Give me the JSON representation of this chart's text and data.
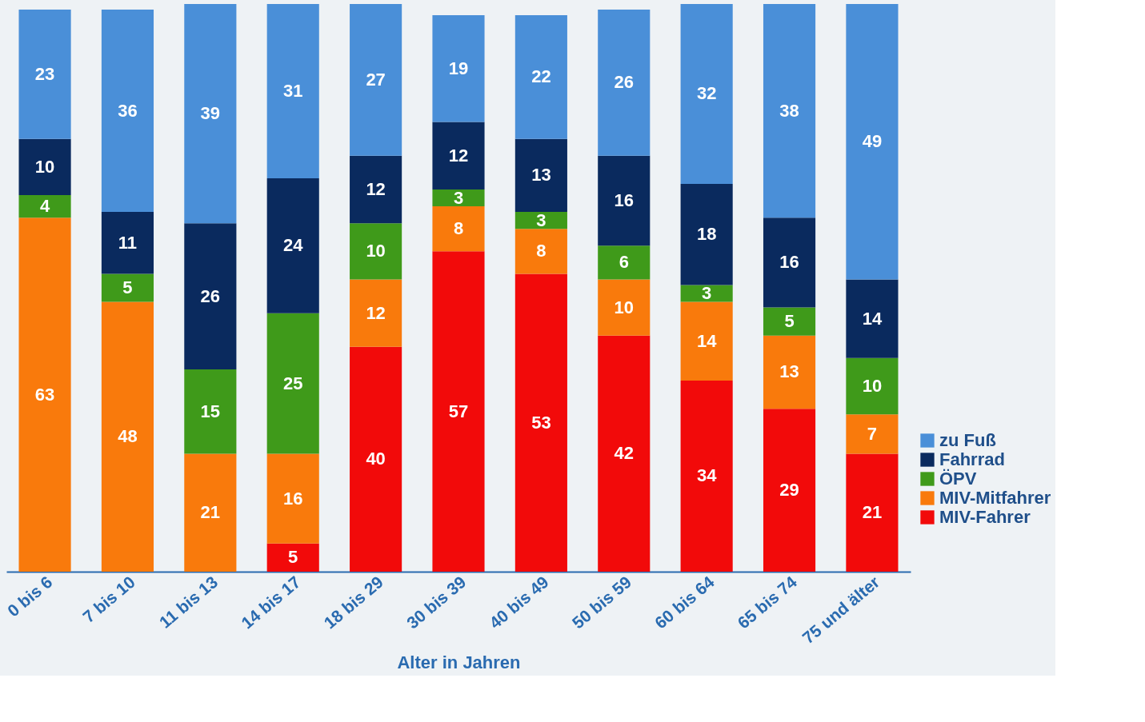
{
  "chart_data": {
    "type": "bar",
    "stacked": true,
    "xlabel": "Alter in Jahren",
    "categories": [
      "0 bis 6",
      "7 bis 10",
      "11 bis 13",
      "14 bis 17",
      "18 bis 29",
      "30 bis 39",
      "40 bis 49",
      "50 bis 59",
      "60 bis 64",
      "65 bis 74",
      "75 und älter"
    ],
    "series": [
      {
        "name": "MIV-Fahrer",
        "color": "#f20a0a",
        "values": [
          null,
          null,
          null,
          5,
          40,
          57,
          53,
          42,
          34,
          29,
          21
        ]
      },
      {
        "name": "MIV-Mitfahrer",
        "color": "#f97a0c",
        "values": [
          63,
          48,
          21,
          16,
          12,
          8,
          8,
          10,
          14,
          13,
          7
        ]
      },
      {
        "name": "ÖPV",
        "color": "#3f9a1a",
        "values": [
          4,
          5,
          15,
          25,
          10,
          3,
          3,
          6,
          3,
          5,
          10
        ]
      },
      {
        "name": "Fahrrad",
        "color": "#0a2a5e",
        "values": [
          10,
          11,
          26,
          24,
          12,
          12,
          13,
          16,
          18,
          16,
          14
        ]
      },
      {
        "name": "zu Fuß",
        "color": "#4a8fd8",
        "values": [
          23,
          36,
          39,
          31,
          27,
          19,
          22,
          26,
          32,
          38,
          49
        ]
      }
    ],
    "ylim": [
      0,
      101
    ],
    "tick_labels": "x",
    "data_labels": true,
    "legend": "bottom right",
    "grid": false
  }
}
